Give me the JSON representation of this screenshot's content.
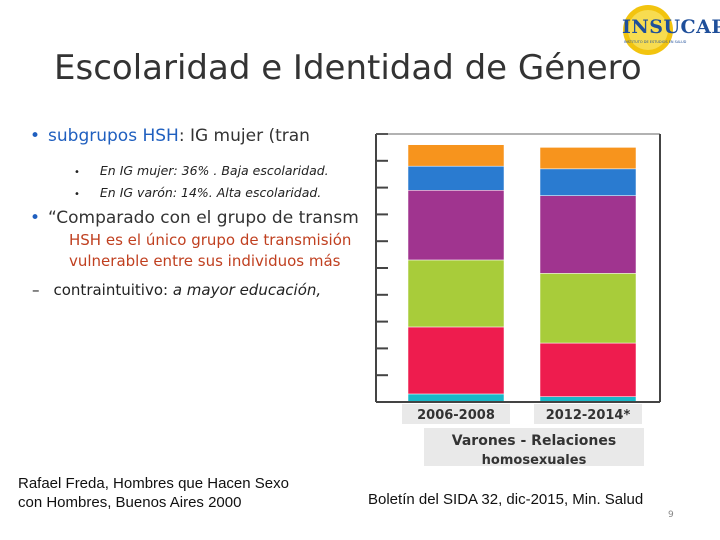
{
  "logo": {
    "text": "INSUCAP",
    "subtext": "INSTITUTO DE ESTUDIOS EN SALUD"
  },
  "title": "Escolaridad e Identidad de Género",
  "bullets": {
    "b1_label": "subgrupos HSH",
    "b1_rest": ": IG mujer (tran",
    "sub1": "En IG mujer: 36% . Baja escolaridad.",
    "sub2": "En IG varón: 14%.   Alta escolaridad.",
    "b2_line1": "“Comparado con el grupo de transm",
    "b2_line2": "HSH es el único grupo de transmisión",
    "b2_line3": "vulnerable entre sus individuos más",
    "dash_normal": "contraintuitivo: ",
    "dash_italic": "a mayor educación,"
  },
  "chart_data": {
    "type": "bar",
    "categories": [
      "2006-2008",
      "2012-2014*"
    ],
    "xlabel": "Varones - Relaciones homosexuales",
    "stacked": true,
    "orientation": "vertical",
    "colors": {
      "orange": "#f7941d",
      "blue": "#2a7bd0",
      "purple": "#a0348f",
      "green": "#a8cc3a",
      "red": "#ee1c4e",
      "cyan": "#19b8c8"
    },
    "series": [
      {
        "color": "cyan",
        "values": [
          3,
          2
        ]
      },
      {
        "color": "red",
        "values": [
          25,
          20
        ]
      },
      {
        "color": "green",
        "values": [
          25,
          26
        ]
      },
      {
        "color": "purple",
        "values": [
          26,
          29
        ]
      },
      {
        "color": "blue",
        "values": [
          9,
          10
        ]
      },
      {
        "color": "orange",
        "values": [
          8,
          8
        ]
      }
    ],
    "ylim": [
      0,
      100
    ]
  },
  "references": {
    "left_line1": "Rafael Freda, Hombres que Hacen Sexo",
    "left_line2": "con Hombres, Buenos Aires 2000",
    "right": "Boletín del SIDA 32, dic-2015, Min. Salud"
  },
  "page_number": "9"
}
